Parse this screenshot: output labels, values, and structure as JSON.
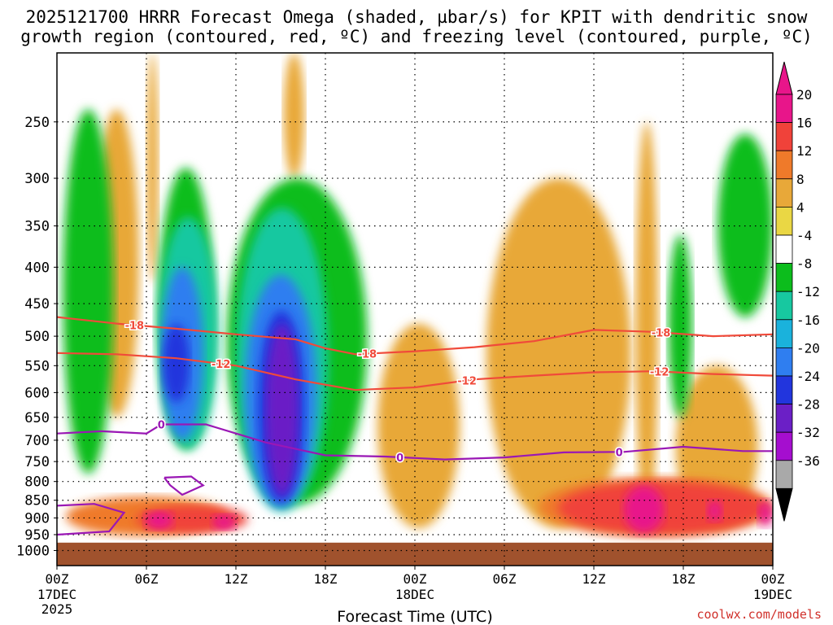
{
  "title_line1": "2025121700 HRRR Forecast Omega (shaded, µbar/s) for KPIT with dendritic snow",
  "title_line2": "growth region (contoured, red, ºC) and freezing level (contoured, purple, ºC)",
  "credit": "coolwx.com/models",
  "chart_data": {
    "type": "heatmap",
    "xlabel": "Forecast Time (UTC)",
    "x_range_hours": [
      0,
      48
    ],
    "x_ticks": [
      {
        "hour": 0,
        "label": "00Z",
        "sub": "17DEC",
        "sub2": "2025"
      },
      {
        "hour": 6,
        "label": "06Z"
      },
      {
        "hour": 12,
        "label": "12Z"
      },
      {
        "hour": 18,
        "label": "18Z"
      },
      {
        "hour": 24,
        "label": "00Z",
        "sub": "18DEC"
      },
      {
        "hour": 30,
        "label": "06Z"
      },
      {
        "hour": 36,
        "label": "12Z"
      },
      {
        "hour": 42,
        "label": "18Z"
      },
      {
        "hour": 48,
        "label": "00Z",
        "sub": "19DEC"
      }
    ],
    "y_ticks_hpa": [
      250,
      300,
      350,
      400,
      450,
      500,
      550,
      600,
      650,
      700,
      750,
      800,
      850,
      900,
      950,
      1000
    ],
    "y_range_hpa": [
      200,
      1050
    ],
    "colorbar": {
      "labels": [
        "20",
        "16",
        "12",
        "8",
        "4",
        "-4",
        "-8",
        "-12",
        "-16",
        "-20",
        "-24",
        "-28",
        "-32",
        "-36"
      ],
      "colors": [
        "#e8158a",
        "#f0423a",
        "#ef7a2a",
        "#e8a839",
        "#ead744",
        "#ffffff",
        "#0cbd1c",
        "#17c8a0",
        "#1ab2dc",
        "#2f7ef0",
        "#2235dd",
        "#6b1fc6",
        "#a50ecf",
        "#a9a9a9"
      ]
    },
    "omega_regions": [
      {
        "value": 6,
        "t0": 2.5,
        "t1": 5.5,
        "p_top": 240,
        "p_bot": 650
      },
      {
        "value": 6,
        "t0": 6.0,
        "t1": 6.8,
        "p_top": 200,
        "p_bot": 420
      },
      {
        "value": 6,
        "t0": 15.2,
        "t1": 16.6,
        "p_top": 200,
        "p_bot": 300
      },
      {
        "value": 6,
        "t0": 21.5,
        "t1": 27.0,
        "p_top": 480,
        "p_bot": 930
      },
      {
        "value": 6,
        "t0": 28.8,
        "t1": 38.5,
        "p_top": 300,
        "p_bot": 930
      },
      {
        "value": 6,
        "t0": 38.8,
        "t1": 40.3,
        "p_top": 250,
        "p_bot": 930
      },
      {
        "value": 6,
        "t0": 41.5,
        "t1": 47.0,
        "p_top": 550,
        "p_bot": 930
      },
      {
        "value": -6,
        "t0": 0.4,
        "t1": 3.8,
        "p_top": 240,
        "p_bot": 780
      },
      {
        "value": -6,
        "t0": 6.8,
        "t1": 10.5,
        "p_top": 290,
        "p_bot": 720
      },
      {
        "value": -6,
        "t0": 11.4,
        "t1": 20.8,
        "p_top": 300,
        "p_bot": 860
      },
      {
        "value": -6,
        "t0": 41.0,
        "t1": 42.6,
        "p_top": 360,
        "p_bot": 650
      },
      {
        "value": -6,
        "t0": 44.3,
        "t1": 48.0,
        "p_top": 260,
        "p_bot": 470
      },
      {
        "value": -12,
        "t0": 6.8,
        "t1": 10.8,
        "p_top": 340,
        "p_bot": 720
      },
      {
        "value": -12,
        "t0": 12.0,
        "t1": 18.2,
        "p_top": 330,
        "p_bot": 880
      },
      {
        "value": -18,
        "t0": 7.0,
        "t1": 9.8,
        "p_top": 400,
        "p_bot": 700
      },
      {
        "value": -18,
        "t0": 12.6,
        "t1": 17.4,
        "p_top": 410,
        "p_bot": 870
      },
      {
        "value": -22,
        "t0": 7.1,
        "t1": 8.9,
        "p_top": 480,
        "p_bot": 620
      },
      {
        "value": -22,
        "t0": 13.5,
        "t1": 16.6,
        "p_top": 460,
        "p_bot": 855
      },
      {
        "value": -26,
        "t0": 14.0,
        "t1": 16.2,
        "p_top": 480,
        "p_bot": 840
      },
      {
        "value": 10,
        "t0": 0.6,
        "t1": 11.5,
        "p_top": 840,
        "p_bot": 955
      },
      {
        "value": 10,
        "t0": 32.3,
        "t1": 48.0,
        "p_top": 790,
        "p_bot": 955
      },
      {
        "value": 15,
        "t0": 5.3,
        "t1": 12.8,
        "p_top": 865,
        "p_bot": 945
      },
      {
        "value": 15,
        "t0": 33.6,
        "t1": 47.5,
        "p_top": 800,
        "p_bot": 950
      },
      {
        "value": 20,
        "t0": 5.9,
        "t1": 7.8,
        "p_top": 880,
        "p_bot": 935
      },
      {
        "value": 20,
        "t0": 10.4,
        "t1": 12.0,
        "p_top": 890,
        "p_bot": 935
      },
      {
        "value": 20,
        "t0": 38.0,
        "t1": 40.7,
        "p_top": 810,
        "p_bot": 945
      },
      {
        "value": 20,
        "t0": 43.6,
        "t1": 44.6,
        "p_top": 850,
        "p_bot": 910
      },
      {
        "value": 20,
        "t0": 47.0,
        "t1": 48.0,
        "p_top": 850,
        "p_bot": 925
      }
    ],
    "contours": [
      {
        "name": "-18",
        "color": "#f04a3a",
        "points": [
          [
            0,
            470
          ],
          [
            4,
            480
          ],
          [
            8,
            488
          ],
          [
            12,
            497
          ],
          [
            16,
            505
          ],
          [
            18,
            520
          ],
          [
            20,
            530
          ],
          [
            24,
            525
          ],
          [
            28,
            518
          ],
          [
            32,
            508
          ],
          [
            36,
            490
          ],
          [
            40,
            493
          ],
          [
            44,
            500
          ],
          [
            48,
            497
          ]
        ],
        "label_hours": [
          5.2,
          20.8,
          40.5
        ]
      },
      {
        "name": "-12",
        "color": "#f04a3a",
        "points": [
          [
            0,
            528
          ],
          [
            4,
            530
          ],
          [
            8,
            537
          ],
          [
            12,
            550
          ],
          [
            16,
            575
          ],
          [
            20,
            595
          ],
          [
            24,
            590
          ],
          [
            28,
            575
          ],
          [
            32,
            568
          ],
          [
            36,
            562
          ],
          [
            40,
            560
          ],
          [
            44,
            565
          ],
          [
            48,
            568
          ]
        ],
        "label_hours": [
          11.0,
          27.5,
          40.4
        ]
      },
      {
        "name": "0",
        "color": "#9a17b5",
        "points": [
          [
            0,
            685
          ],
          [
            3,
            680
          ],
          [
            6,
            685
          ],
          [
            7,
            665
          ],
          [
            10,
            665
          ],
          [
            14,
            705
          ],
          [
            18,
            735
          ],
          [
            22,
            738
          ],
          [
            26,
            745
          ],
          [
            30,
            740
          ],
          [
            34,
            728
          ],
          [
            38,
            727
          ],
          [
            42,
            715
          ],
          [
            46,
            725
          ],
          [
            48,
            725
          ]
        ],
        "label_hours": [
          7.0,
          23.0,
          37.7
        ]
      }
    ],
    "freezing_loops": [
      {
        "points": [
          [
            7.2,
            790
          ],
          [
            9.0,
            787
          ],
          [
            9.8,
            810
          ],
          [
            8.4,
            835
          ],
          [
            7.6,
            810
          ],
          [
            7.2,
            790
          ]
        ]
      },
      {
        "points": [
          [
            0,
            865
          ],
          [
            2.5,
            860
          ],
          [
            4.5,
            885
          ],
          [
            3.5,
            940
          ],
          [
            0,
            950
          ]
        ]
      }
    ],
    "terrain_top_hpa": 975
  }
}
